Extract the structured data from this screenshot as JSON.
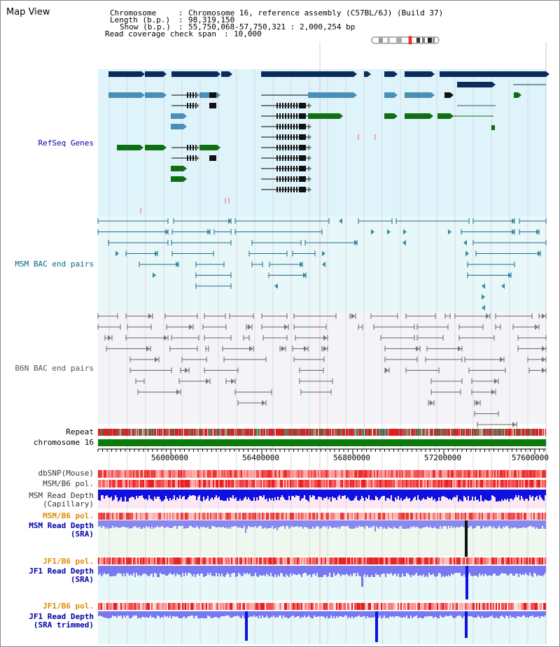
{
  "title": "Map View",
  "info": {
    "chromosome_key": "Chromosome",
    "chromosome_value": "Chromosome 16, reference assembly (C57BL/6J) (Build 37)",
    "length_key": "Length (b.p.)",
    "length_value": "98,319,150",
    "show_key": "Show (b.p.)",
    "show_value": "55,750,068-57,750,321 : 2,000,254 bp",
    "span_key": "Read coverage check span",
    "span_value": "10,000"
  },
  "tracks": {
    "refseq": "RefSeq Genes",
    "msm_bac": "MSM BAC end pairs",
    "b6n_bac": "B6N BAC end pairs",
    "repeat": "Repeat",
    "chromosome": "chromosome 16",
    "dbsnp": "dbSNP(Mouse)",
    "msm_b6_pol": "MSM/B6 pol.",
    "msm_depth_cap_1": "MSM Read Depth",
    "msm_depth_cap_2": "(Capillary)",
    "msm_b6_pol_2": "MSM/B6 pol.",
    "msm_depth_sra_1": "MSM Read Depth",
    "msm_depth_sra_2": "(SRA)",
    "jf1_b6_pol": "JF1/B6 pol.",
    "jf1_depth_sra_1": "JF1 Read Depth",
    "jf1_depth_sra_2": "(SRA)",
    "jf1_b6_pol_2": "JF1/B6 pol.",
    "jf1_depth_trim_1": "JF1 Read Depth",
    "jf1_depth_trim_2": "(SRA trimmed)"
  },
  "axis_ticks": [
    "56000000",
    "56400000",
    "56800000",
    "57200000",
    "57600000"
  ],
  "colors": {
    "refseq_bg": "#dff3fa",
    "msm_bac_bg": "#e8f8f8",
    "b6n_bac_bg": "#f4f4f8",
    "gene_dark": "#0a2c5a",
    "gene_mid": "#4a8fb8",
    "gene_green": "#0f6f12",
    "chrom_green": "#0a7a0a",
    "depth_blue": "#1010e0",
    "depth_light": "#7878f0",
    "label_blue": "#0000aa",
    "label_orange": "#e08a00",
    "label_teal": "#006680"
  }
}
